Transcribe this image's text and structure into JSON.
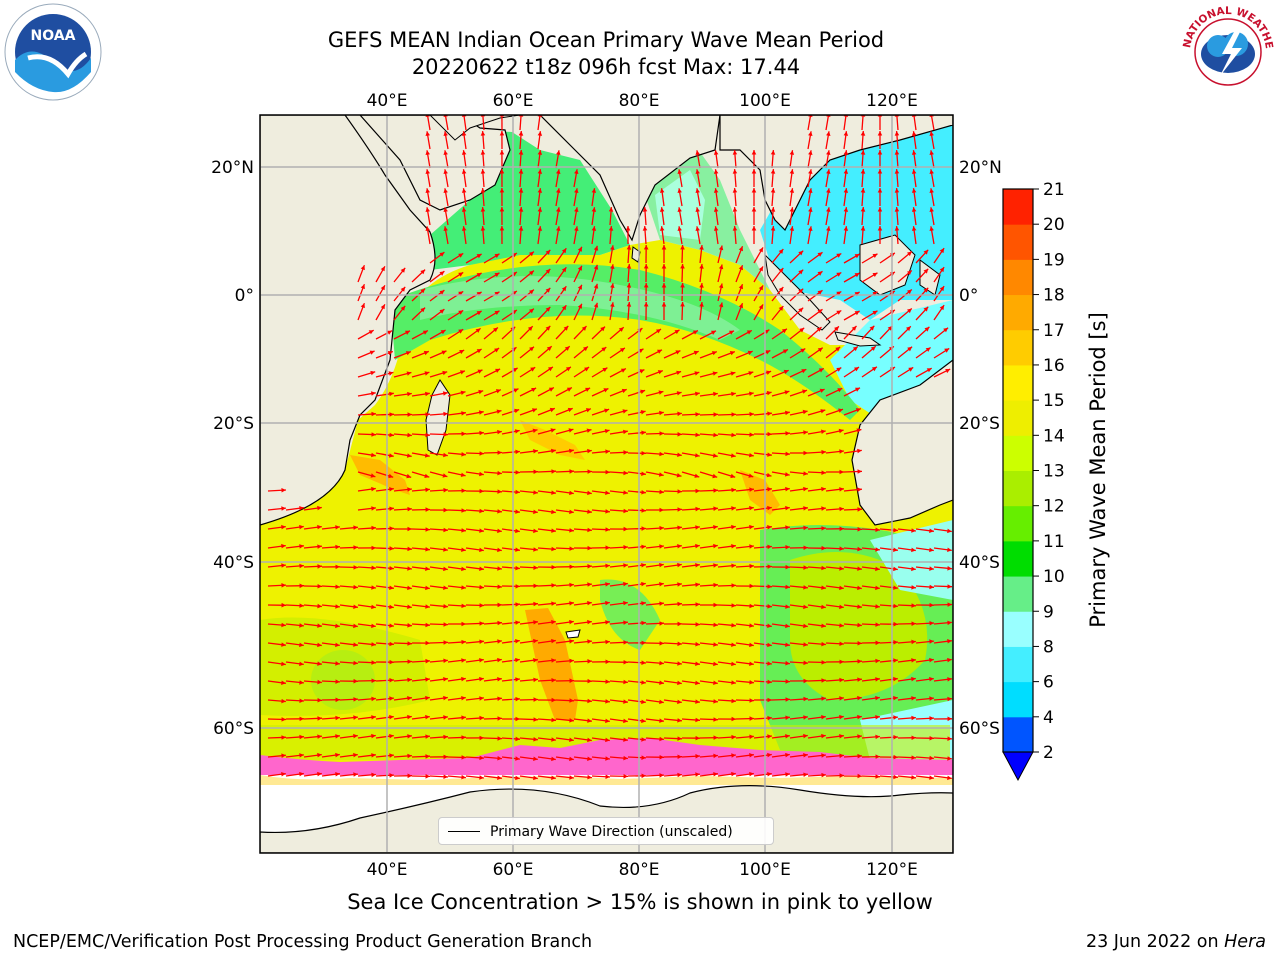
{
  "title": {
    "line1": "GEFS MEAN Indian Ocean Primary Wave Mean Period",
    "line2": "20220622 t18z 096h fcst   Max: 17.44"
  },
  "logos": {
    "left": {
      "name": "NOAA",
      "icon": "noaa-logo"
    },
    "right": {
      "name": "NATIONAL WEATHER SERVICE",
      "icon": "nws-logo"
    }
  },
  "map": {
    "top_lon_labels": [
      "40°E",
      "60°E",
      "80°E",
      "100°E",
      "120°E"
    ],
    "bottom_lon_labels": [
      "40°E",
      "60°E",
      "80°E",
      "100°E",
      "120°E"
    ],
    "left_lat_labels": [
      "20°N",
      "0°",
      "20°S",
      "40°S",
      "60°S"
    ],
    "right_lat_labels": [
      "20°N",
      "0°",
      "20°S",
      "40°S",
      "60°S"
    ],
    "extent": {
      "lon_min": 20,
      "lon_max": 130,
      "lat_min": -72,
      "lat_max": 28
    },
    "colors": {
      "land": "#efedde",
      "ice_free": "#ffffff",
      "ice_pink": "#ff66cc",
      "grid": "#b0b0b0",
      "arrow": "#ff0000"
    }
  },
  "legend": {
    "label": "Primary Wave Direction (unscaled)"
  },
  "colorbar": {
    "title": "Primary Wave Mean Period [s]",
    "tick_labels": [
      "2",
      "4",
      "6",
      "8",
      "9",
      "10",
      "11",
      "12",
      "13",
      "14",
      "15",
      "16",
      "17",
      "18",
      "19",
      "20",
      "21"
    ],
    "colors": [
      "#0055ff",
      "#00ddff",
      "#44eeff",
      "#99ffff",
      "#66ee88",
      "#00dd00",
      "#66ee00",
      "#aaee00",
      "#ccff00",
      "#eeee00",
      "#ffee00",
      "#ffcc00",
      "#ffaa00",
      "#ff8800",
      "#ff5500",
      "#ff2200"
    ],
    "under_color": "#0000ff"
  },
  "subtitle": "Sea Ice Concentration > 15% is shown in pink to yellow",
  "footer": {
    "left": "NCEP/EMC/Verification Post Processing Product Generation Branch",
    "right_prefix": "23 Jun 2022 on ",
    "right_host": "Hera"
  }
}
